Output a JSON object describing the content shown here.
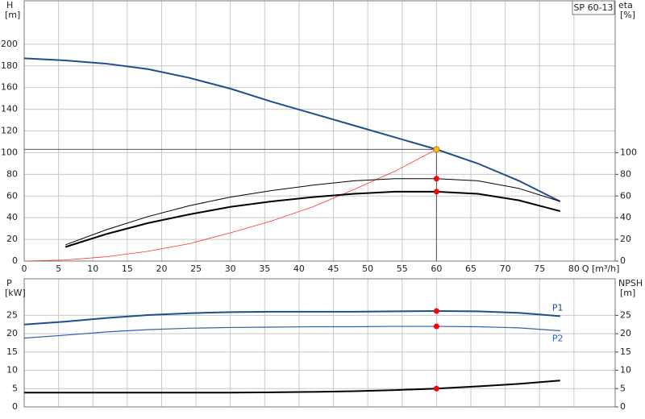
{
  "chart_data": [
    {
      "type": "line",
      "title": "SP 60-13",
      "xlabel": "Q [m³/h]",
      "ylabel": "H",
      "yunit": "[m]",
      "y2label": "eta",
      "y2unit": "[%]",
      "xlim": [
        0,
        86
      ],
      "xticks": [
        0,
        5,
        10,
        15,
        20,
        25,
        30,
        35,
        40,
        45,
        50,
        55,
        60,
        65,
        70,
        75,
        80
      ],
      "ylim": [
        0,
        240
      ],
      "yticks": [
        0,
        20,
        40,
        60,
        80,
        100,
        120,
        140,
        160,
        180,
        200
      ],
      "y2lim": [
        0,
        240
      ],
      "y2ticks": [
        0,
        20,
        40,
        60,
        80,
        100
      ],
      "grid": true,
      "crosshair": true,
      "series": [
        {
          "color": "#1f4e8c",
          "width": 2,
          "x": [
            0,
            6,
            12,
            18,
            24,
            30,
            36,
            42,
            48,
            54,
            60,
            66,
            72,
            78
          ],
          "values": [
            187,
            185,
            182,
            177,
            169,
            159,
            147,
            136,
            125,
            114,
            103,
            90,
            74,
            55
          ]
        },
        {
          "color": "#ff3030",
          "width": 0.8,
          "x": [
            0,
            6,
            12,
            18,
            24,
            30,
            36,
            42,
            48,
            54,
            60
          ],
          "values": [
            0,
            1,
            4,
            9,
            16,
            26,
            37,
            50,
            66,
            83,
            103
          ]
        },
        {
          "color": "#000000",
          "width": 1,
          "axis": "y2",
          "x": [
            6,
            12,
            18,
            24,
            30,
            36,
            42,
            48,
            54,
            60,
            66,
            72,
            78
          ],
          "values": [
            15,
            29,
            41,
            51,
            59,
            65,
            70,
            74,
            76,
            76,
            74,
            67,
            55
          ]
        },
        {
          "color": "#000000",
          "width": 2,
          "axis": "y2",
          "x": [
            6,
            12,
            18,
            24,
            30,
            36,
            42,
            48,
            54,
            60,
            66,
            72,
            78
          ],
          "values": [
            13,
            25,
            35,
            43,
            50,
            55,
            59,
            62,
            64,
            64,
            62,
            56,
            46
          ]
        }
      ],
      "points": [
        {
          "x": 60,
          "y": 103,
          "color": "#ffc000"
        },
        {
          "x": 60,
          "y": 76,
          "color": "#ff0000",
          "axis": "y2"
        },
        {
          "x": 60,
          "y": 64,
          "color": "#ff0000",
          "axis": "y2"
        }
      ]
    },
    {
      "type": "line",
      "ylabel": "P",
      "yunit": "[kW]",
      "y2label": "NPSH",
      "y2unit": "[m]",
      "xlim": [
        0,
        86
      ],
      "ylim": [
        0,
        35
      ],
      "yticks": [
        0,
        5,
        10,
        15,
        20,
        25
      ],
      "y2lim": [
        0,
        35
      ],
      "y2ticks": [
        0,
        5,
        10,
        15,
        20,
        25
      ],
      "grid": true,
      "series": [
        {
          "name": "P1",
          "color": "#1f4e8c",
          "width": 2,
          "x": [
            0,
            6,
            12,
            18,
            24,
            30,
            36,
            42,
            48,
            54,
            60,
            66,
            72,
            78
          ],
          "values": [
            22.5,
            23.3,
            24.3,
            25.1,
            25.6,
            25.9,
            26,
            26,
            26,
            26.1,
            26.2,
            26.1,
            25.7,
            24.8
          ]
        },
        {
          "name": "P2",
          "color": "#2a64a8",
          "width": 1.2,
          "x": [
            0,
            6,
            12,
            18,
            24,
            30,
            36,
            42,
            48,
            54,
            60,
            66,
            72,
            78
          ],
          "values": [
            18.8,
            19.6,
            20.5,
            21.1,
            21.5,
            21.7,
            21.8,
            21.9,
            21.9,
            22,
            22,
            21.9,
            21.6,
            20.8
          ]
        },
        {
          "color": "#000000",
          "width": 2,
          "axis": "y2",
          "x": [
            0,
            6,
            12,
            18,
            24,
            30,
            36,
            42,
            48,
            54,
            60,
            66,
            72,
            78
          ],
          "values": [
            3.9,
            3.9,
            3.9,
            3.9,
            3.9,
            3.9,
            4.0,
            4.1,
            4.3,
            4.6,
            5.0,
            5.6,
            6.3,
            7.2
          ]
        }
      ],
      "points": [
        {
          "x": 60,
          "y": 26.2,
          "color": "#ff0000"
        },
        {
          "x": 60,
          "y": 22,
          "color": "#ff0000"
        },
        {
          "x": 60,
          "y": 5.0,
          "color": "#ff0000",
          "axis": "y2"
        }
      ]
    }
  ]
}
